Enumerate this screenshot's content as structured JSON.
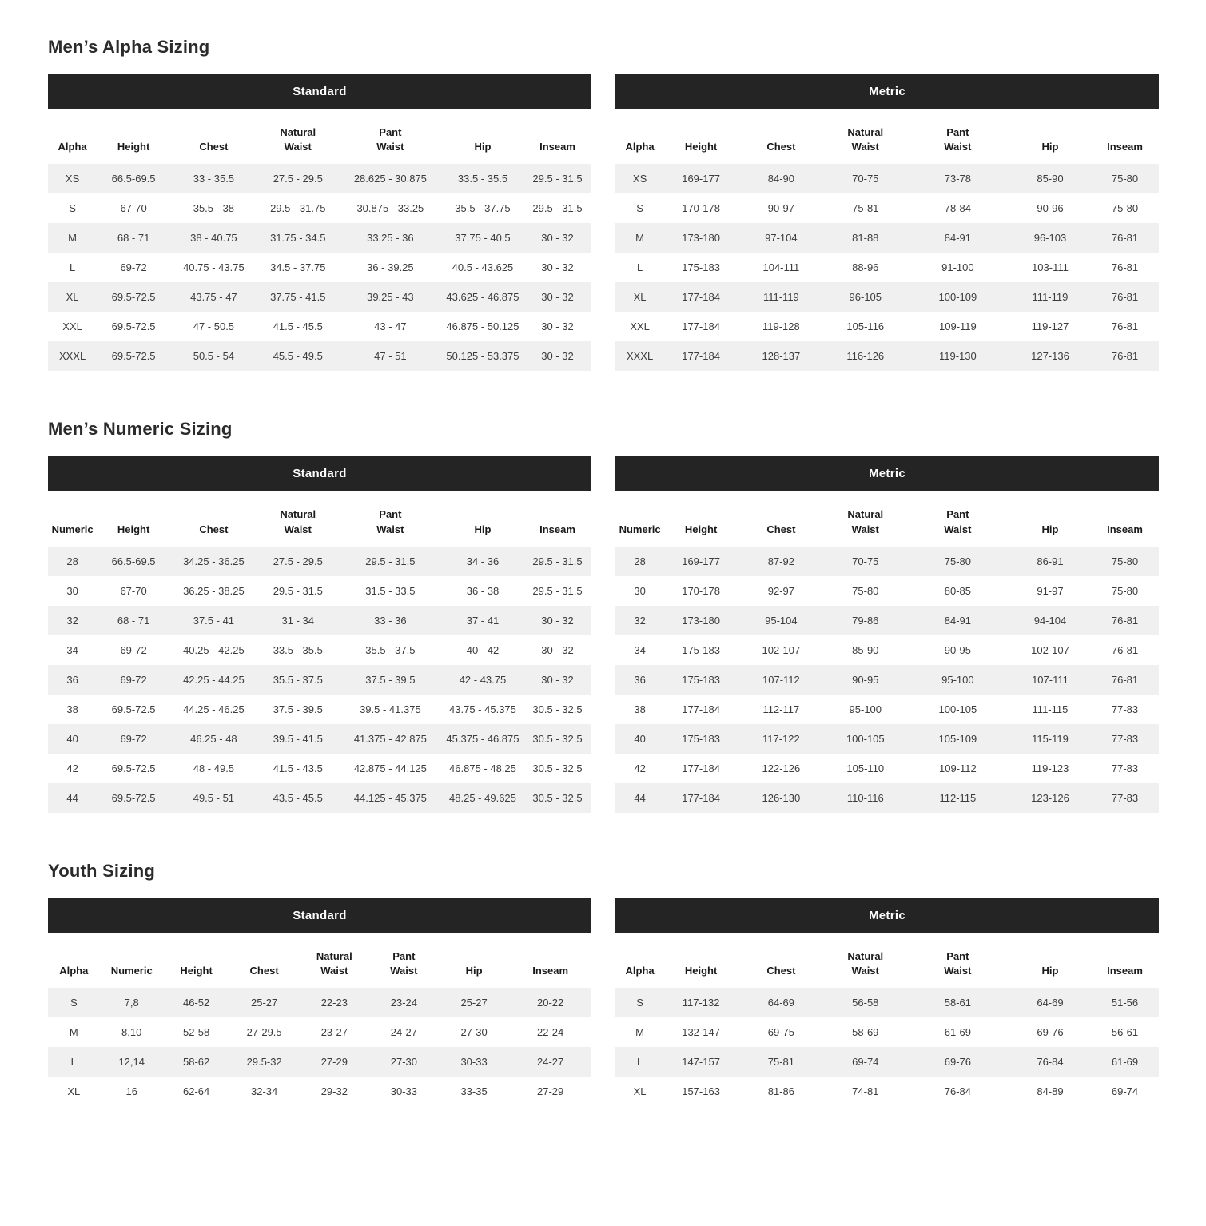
{
  "colors": {
    "page_background": "#ffffff",
    "unit_bar_background": "#242424",
    "unit_bar_text": "#ffffff",
    "alternate_row_background": "#f0f0f0",
    "title_text": "#2b2b2b",
    "cell_text": "#3c3c3c"
  },
  "sections": [
    {
      "title": "Men’s Alpha Sizing",
      "tables": [
        {
          "unit_label": "Standard",
          "columns": [
            "Alpha",
            "Height",
            "Chest",
            "Natural\nWaist",
            "Pant\nWaist",
            "Hip",
            "Inseam"
          ],
          "rows": [
            [
              "XS",
              "66.5-69.5",
              "33 - 35.5",
              "27.5 - 29.5",
              "28.625 - 30.875",
              "33.5 - 35.5",
              "29.5 - 31.5"
            ],
            [
              "S",
              "67-70",
              "35.5 - 38",
              "29.5 - 31.75",
              "30.875 - 33.25",
              "35.5 - 37.75",
              "29.5 - 31.5"
            ],
            [
              "M",
              "68 - 71",
              "38 - 40.75",
              "31.75 - 34.5",
              "33.25 - 36",
              "37.75 - 40.5",
              "30 - 32"
            ],
            [
              "L",
              "69-72",
              "40.75 - 43.75",
              "34.5 - 37.75",
              "36 - 39.25",
              "40.5 - 43.625",
              "30 - 32"
            ],
            [
              "XL",
              "69.5-72.5",
              "43.75 - 47",
              "37.75 - 41.5",
              "39.25 - 43",
              "43.625 - 46.875",
              "30 - 32"
            ],
            [
              "XXL",
              "69.5-72.5",
              "47 - 50.5",
              "41.5 - 45.5",
              "43 - 47",
              "46.875 - 50.125",
              "30 - 32"
            ],
            [
              "XXXL",
              "69.5-72.5",
              "50.5 - 54",
              "45.5 - 49.5",
              "47 - 51",
              "50.125 - 53.375",
              "30 - 32"
            ]
          ]
        },
        {
          "unit_label": "Metric",
          "columns": [
            "Alpha",
            "Height",
            "Chest",
            "Natural\nWaist",
            "Pant\nWaist",
            "Hip",
            "Inseam"
          ],
          "rows": [
            [
              "XS",
              "169-177",
              "84-90",
              "70-75",
              "73-78",
              "85-90",
              "75-80"
            ],
            [
              "S",
              "170-178",
              "90-97",
              "75-81",
              "78-84",
              "90-96",
              "75-80"
            ],
            [
              "M",
              "173-180",
              "97-104",
              "81-88",
              "84-91",
              "96-103",
              "76-81"
            ],
            [
              "L",
              "175-183",
              "104-111",
              "88-96",
              "91-100",
              "103-111",
              "76-81"
            ],
            [
              "XL",
              "177-184",
              "111-119",
              "96-105",
              "100-109",
              "111-119",
              "76-81"
            ],
            [
              "XXL",
              "177-184",
              "119-128",
              "105-116",
              "109-119",
              "119-127",
              "76-81"
            ],
            [
              "XXXL",
              "177-184",
              "128-137",
              "116-126",
              "119-130",
              "127-136",
              "76-81"
            ]
          ]
        }
      ]
    },
    {
      "title": "Men’s Numeric Sizing",
      "tables": [
        {
          "unit_label": "Standard",
          "columns": [
            "Numeric",
            "Height",
            "Chest",
            "Natural\nWaist",
            "Pant\nWaist",
            "Hip",
            "Inseam"
          ],
          "rows": [
            [
              "28",
              "66.5-69.5",
              "34.25 - 36.25",
              "27.5 - 29.5",
              "29.5 - 31.5",
              "34 - 36",
              "29.5 - 31.5"
            ],
            [
              "30",
              "67-70",
              "36.25 - 38.25",
              "29.5 - 31.5",
              "31.5 - 33.5",
              "36 - 38",
              "29.5 - 31.5"
            ],
            [
              "32",
              "68 - 71",
              "37.5 - 41",
              "31 - 34",
              "33 - 36",
              "37 - 41",
              "30 - 32"
            ],
            [
              "34",
              "69-72",
              "40.25 - 42.25",
              "33.5 - 35.5",
              "35.5 - 37.5",
              "40 - 42",
              "30 - 32"
            ],
            [
              "36",
              "69-72",
              "42.25 - 44.25",
              "35.5 - 37.5",
              "37.5 - 39.5",
              "42 - 43.75",
              "30 - 32"
            ],
            [
              "38",
              "69.5-72.5",
              "44.25 - 46.25",
              "37.5 - 39.5",
              "39.5 - 41.375",
              "43.75 - 45.375",
              "30.5 - 32.5"
            ],
            [
              "40",
              "69-72",
              "46.25 - 48",
              "39.5 - 41.5",
              "41.375 - 42.875",
              "45.375 - 46.875",
              "30.5 - 32.5"
            ],
            [
              "42",
              "69.5-72.5",
              "48 - 49.5",
              "41.5 - 43.5",
              "42.875 - 44.125",
              "46.875 - 48.25",
              "30.5 - 32.5"
            ],
            [
              "44",
              "69.5-72.5",
              "49.5 - 51",
              "43.5 - 45.5",
              "44.125 - 45.375",
              "48.25 - 49.625",
              "30.5 - 32.5"
            ]
          ]
        },
        {
          "unit_label": "Metric",
          "columns": [
            "Numeric",
            "Height",
            "Chest",
            "Natural\nWaist",
            "Pant\nWaist",
            "Hip",
            "Inseam"
          ],
          "rows": [
            [
              "28",
              "169-177",
              "87-92",
              "70-75",
              "75-80",
              "86-91",
              "75-80"
            ],
            [
              "30",
              "170-178",
              "92-97",
              "75-80",
              "80-85",
              "91-97",
              "75-80"
            ],
            [
              "32",
              "173-180",
              "95-104",
              "79-86",
              "84-91",
              "94-104",
              "76-81"
            ],
            [
              "34",
              "175-183",
              "102-107",
              "85-90",
              "90-95",
              "102-107",
              "76-81"
            ],
            [
              "36",
              "175-183",
              "107-112",
              "90-95",
              "95-100",
              "107-111",
              "76-81"
            ],
            [
              "38",
              "177-184",
              "112-117",
              "95-100",
              "100-105",
              "111-115",
              "77-83"
            ],
            [
              "40",
              "175-183",
              "117-122",
              "100-105",
              "105-109",
              "115-119",
              "77-83"
            ],
            [
              "42",
              "177-184",
              "122-126",
              "105-110",
              "109-112",
              "119-123",
              "77-83"
            ],
            [
              "44",
              "177-184",
              "126-130",
              "110-116",
              "112-115",
              "123-126",
              "77-83"
            ]
          ]
        }
      ]
    },
    {
      "title": "Youth Sizing",
      "tables": [
        {
          "unit_label": "Standard",
          "columns": [
            "Alpha",
            "Numeric",
            "Height",
            "Chest",
            "Natural\nWaist",
            "Pant\nWaist",
            "Hip",
            "Inseam"
          ],
          "rows": [
            [
              "S",
              "7,8",
              "46-52",
              "25-27",
              "22-23",
              "23-24",
              "25-27",
              "20-22"
            ],
            [
              "M",
              "8,10",
              "52-58",
              "27-29.5",
              "23-27",
              "24-27",
              "27-30",
              "22-24"
            ],
            [
              "L",
              "12,14",
              "58-62",
              "29.5-32",
              "27-29",
              "27-30",
              "30-33",
              "24-27"
            ],
            [
              "XL",
              "16",
              "62-64",
              "32-34",
              "29-32",
              "30-33",
              "33-35",
              "27-29"
            ]
          ]
        },
        {
          "unit_label": "Metric",
          "columns": [
            "Alpha",
            "Height",
            "Chest",
            "Natural\nWaist",
            "Pant\nWaist",
            "Hip",
            "Inseam"
          ],
          "rows": [
            [
              "S",
              "117-132",
              "64-69",
              "56-58",
              "58-61",
              "64-69",
              "51-56"
            ],
            [
              "M",
              "132-147",
              "69-75",
              "58-69",
              "61-69",
              "69-76",
              "56-61"
            ],
            [
              "L",
              "147-157",
              "75-81",
              "69-74",
              "69-76",
              "76-84",
              "61-69"
            ],
            [
              "XL",
              "157-163",
              "81-86",
              "74-81",
              "76-84",
              "84-89",
              "69-74"
            ]
          ]
        }
      ]
    }
  ]
}
